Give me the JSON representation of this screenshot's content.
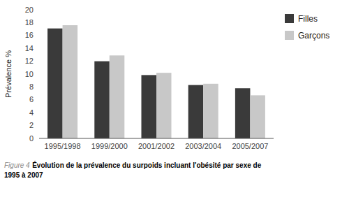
{
  "chart_data": {
    "type": "bar",
    "categories": [
      "1995/1998",
      "1999/2000",
      "2001/2002",
      "2003/2004",
      "2005/2007"
    ],
    "series": [
      {
        "name": "Filles",
        "color": "#3a3a3a",
        "values": [
          17.1,
          12.0,
          9.85,
          8.3,
          7.8
        ]
      },
      {
        "name": "Garçons",
        "color": "#c8c8c8",
        "values": [
          17.6,
          12.9,
          10.2,
          8.5,
          6.7
        ]
      }
    ],
    "ylabel": "Prévalence %",
    "ylim": [
      0,
      20
    ],
    "yticks": [
      0,
      2,
      4,
      6,
      8,
      10,
      12,
      14,
      16,
      18,
      20
    ],
    "grid": false,
    "legend": "right",
    "caption": {
      "label": "Figure 4",
      "text": "Évolution de la prévalence du surpoids incluant l'obésité par sexe de\n1995 à 2007"
    }
  }
}
